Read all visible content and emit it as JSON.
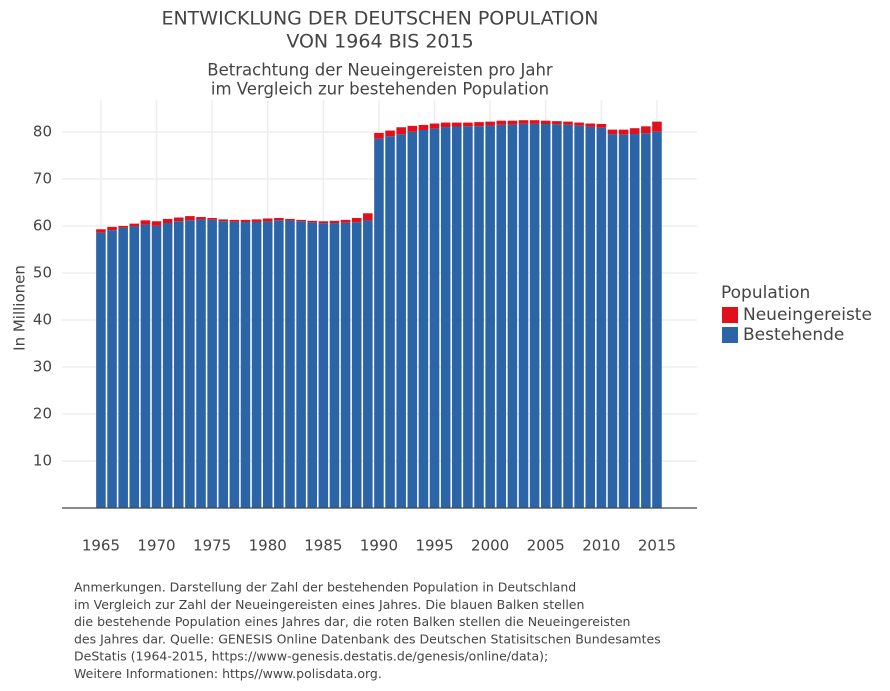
{
  "chart_data": {
    "type": "stacked_bar",
    "title": [
      "ENTWICKLUNG DER DEUTSCHEN POPULATION",
      "VON 1964 BIS 2015"
    ],
    "subtitle": [
      "Betrachtung der Neueingereisten pro Jahr",
      "im Vergleich zur bestehenden Population"
    ],
    "y_label": "In Millionen",
    "legend_title": "Population",
    "x": [
      1965,
      1966,
      1967,
      1968,
      1969,
      1970,
      1971,
      1972,
      1973,
      1974,
      1975,
      1976,
      1977,
      1978,
      1979,
      1980,
      1981,
      1982,
      1983,
      1984,
      1985,
      1986,
      1987,
      1988,
      1989,
      1990,
      1991,
      1992,
      1993,
      1994,
      1995,
      1996,
      1997,
      1998,
      1999,
      2000,
      2001,
      2002,
      2003,
      2004,
      2005,
      2006,
      2007,
      2008,
      2009,
      2010,
      2011,
      2012,
      2013,
      2014,
      2015
    ],
    "series": [
      {
        "name": "Neueingereiste",
        "color": "#e0101d",
        "values": [
          0.72,
          0.69,
          0.4,
          0.59,
          0.91,
          0.98,
          0.87,
          0.79,
          0.87,
          0.54,
          0.37,
          0.39,
          0.42,
          0.46,
          0.55,
          0.63,
          0.5,
          0.32,
          0.27,
          0.33,
          0.4,
          0.48,
          0.61,
          0.9,
          1.52,
          1.26,
          1.2,
          1.5,
          1.27,
          1.08,
          1.1,
          0.96,
          0.84,
          0.8,
          0.87,
          0.84,
          0.88,
          0.84,
          0.77,
          0.78,
          0.71,
          0.66,
          0.68,
          0.68,
          0.72,
          0.8,
          0.96,
          1.08,
          1.23,
          1.46,
          2.14
        ]
      },
      {
        "name": "Bestehende",
        "color": "#2b65a8",
        "values": [
          58.58,
          59.11,
          59.6,
          59.91,
          60.29,
          60.02,
          60.63,
          61.01,
          61.23,
          61.36,
          61.33,
          61.01,
          60.88,
          60.84,
          60.85,
          60.97,
          61.2,
          61.18,
          61.03,
          60.77,
          60.6,
          60.62,
          60.69,
          60.8,
          61.18,
          78.54,
          79.1,
          79.5,
          80.03,
          80.42,
          80.7,
          81.04,
          81.16,
          81.2,
          81.23,
          81.36,
          81.52,
          81.56,
          81.73,
          81.72,
          81.69,
          81.64,
          81.52,
          81.32,
          81.08,
          80.9,
          79.54,
          79.42,
          79.57,
          79.74,
          80.06
        ]
      }
    ],
    "xlim": [
      1961.5,
      2018.6
    ],
    "xticks": [
      1965,
      1970,
      1975,
      1980,
      1985,
      1990,
      1995,
      2000,
      2005,
      2010,
      2015
    ],
    "ylim": [
      0,
      86.8
    ],
    "yticks": [
      10,
      20,
      30,
      40,
      50,
      60,
      70,
      80
    ],
    "grid": true,
    "legend": "right",
    "note": [
      "Anmerkungen. Darstellung der Zahl der bestehenden Population in Deutschland",
      "im Vergleich zur Zahl der Neueingereisten eines Jahres. Die blauen Balken stellen",
      "die bestehende Population eines Jahres dar, die roten Balken stellen die Neueingereisten",
      "des Jahres dar. Quelle: GENESIS Online Datenbank des Deutschen Statisitschen Bundesamtes",
      "DeStatis (1964-2015, https://www-genesis.destatis.de/genesis/online/data);",
      "Weitere Informationen: https//www.polisdata.org."
    ]
  }
}
